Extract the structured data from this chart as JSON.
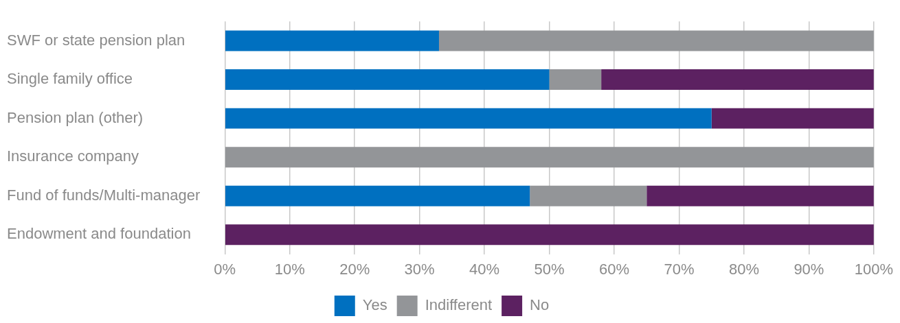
{
  "chart_data": {
    "type": "bar",
    "orientation": "horizontal",
    "stacked": true,
    "categories": [
      "SWF or state pension plan",
      "Single family office",
      "Pension plan (other)",
      "Insurance company",
      "Fund of funds/Multi-manager",
      "Endowment and foundation"
    ],
    "series": [
      {
        "name": "Yes",
        "color": "#0070c0",
        "values": [
          33,
          50,
          75,
          0,
          47,
          0
        ]
      },
      {
        "name": "Indifferent",
        "color": "#939598",
        "values": [
          67,
          8,
          0,
          100,
          18,
          0
        ]
      },
      {
        "name": "No",
        "color": "#5c2161",
        "values": [
          0,
          42,
          25,
          0,
          35,
          100
        ]
      }
    ],
    "xlim": [
      0,
      100
    ],
    "xticks": [
      {
        "value": 0,
        "label": "0%"
      },
      {
        "value": 10,
        "label": "10%"
      },
      {
        "value": 20,
        "label": "20%"
      },
      {
        "value": 30,
        "label": "30%"
      },
      {
        "value": 40,
        "label": "40%"
      },
      {
        "value": 50,
        "label": "50%"
      },
      {
        "value": 60,
        "label": "60%"
      },
      {
        "value": 70,
        "label": "70%"
      },
      {
        "value": 80,
        "label": "80%"
      },
      {
        "value": 90,
        "label": "90%"
      },
      {
        "value": 100,
        "label": "100%"
      }
    ],
    "grid": "x",
    "legend": "bottom"
  }
}
